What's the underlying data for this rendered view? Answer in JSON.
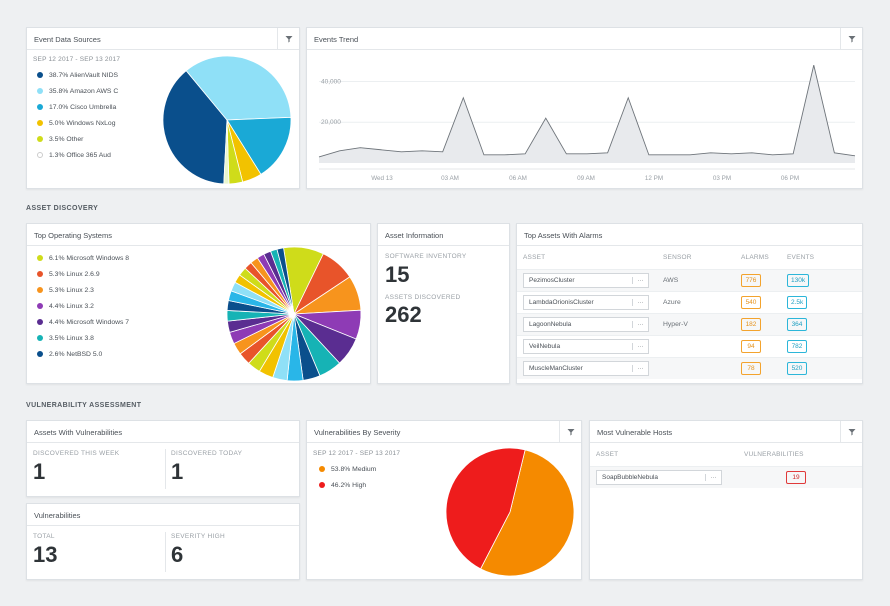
{
  "event_sources": {
    "title": "Event Data Sources",
    "date_range": "SEP 12 2017 - SEP 13 2017",
    "items": [
      {
        "label": "38.7% AlienVault NIDS",
        "color": "#0a4f8c"
      },
      {
        "label": "35.8% Amazon AWS C",
        "color": "#8fe0f7"
      },
      {
        "label": "17.0% Cisco Umbrella",
        "color": "#1aa9d6"
      },
      {
        "label": "5.0% Windows NxLog",
        "color": "#f2c200"
      },
      {
        "label": "3.5% Other",
        "color": "#cfdc1a"
      },
      {
        "label": "1.3% Office 365 Aud",
        "color": "#ffffff"
      }
    ],
    "chart_data": {
      "type": "pie",
      "labels": [
        "AlienVault NIDS",
        "Amazon AWS C",
        "Cisco Umbrella",
        "Windows NxLog",
        "Other",
        "Office 365 Aud"
      ],
      "values": [
        38.7,
        35.8,
        17.0,
        5.0,
        3.5,
        1.3
      ],
      "colors": [
        "#0a4f8c",
        "#8fe0f7",
        "#1aa9d6",
        "#f2c200",
        "#cfdc1a",
        "#e8f6cf"
      ]
    }
  },
  "events_trend": {
    "title": "Events Trend",
    "chart_data": {
      "type": "area",
      "x_labels": [
        "Wed 13",
        "03 AM",
        "06 AM",
        "09 AM",
        "12 PM",
        "03 PM",
        "06 PM"
      ],
      "y_ticks": [
        20000,
        40000
      ],
      "y_tick_labels": [
        "20,000",
        "40,000"
      ],
      "ylim": [
        0,
        52000
      ],
      "values": [
        3000,
        6000,
        7500,
        6500,
        5500,
        6000,
        5500,
        32000,
        4000,
        4000,
        4500,
        22000,
        4500,
        4500,
        5000,
        32000,
        4000,
        4000,
        4000,
        5000,
        4500,
        5000,
        4000,
        4500,
        48000,
        5000,
        3500
      ]
    }
  },
  "asset_discovery": {
    "section_title": "ASSET DISCOVERY",
    "os": {
      "title": "Top Operating Systems",
      "items": [
        {
          "label": "6.1% Microsoft Windows 8",
          "color": "#cfdc1a"
        },
        {
          "label": "5.3% Linux 2.6.9",
          "color": "#e8542a"
        },
        {
          "label": "5.3% Linux 2.3",
          "color": "#f7941d"
        },
        {
          "label": "4.4% Linux 3.2",
          "color": "#8e3bb5"
        },
        {
          "label": "4.4% Microsoft Windows 7",
          "color": "#5a2d91"
        },
        {
          "label": "3.5% Linux 3.8",
          "color": "#16b3b5"
        },
        {
          "label": "2.6% NetBSD 5.0",
          "color": "#0a4f8c"
        }
      ],
      "chart_data": {
        "type": "pie",
        "labels": [
          "Microsoft Windows 8",
          "Linux 2.6.9",
          "Linux 2.3",
          "Linux 3.2",
          "Microsoft Windows 7",
          "Linux 3.8",
          "NetBSD 5.0"
        ],
        "values": [
          6.1,
          5.3,
          5.3,
          4.4,
          4.4,
          3.5,
          2.6
        ]
      }
    },
    "info": {
      "title": "Asset Information",
      "software_label": "SOFTWARE INVENTORY",
      "software_value": "15",
      "discovered_label": "ASSETS DISCOVERED",
      "discovered_value": "262"
    },
    "top_assets": {
      "title": "Top Assets With Alarms",
      "headers": {
        "asset": "ASSET",
        "sensor": "SENSOR",
        "alarms": "ALARMS",
        "events": "EVENTS"
      },
      "rows": [
        {
          "asset": "PezimosCluster",
          "sensor": "AWS",
          "alarms": "776",
          "events": "130k"
        },
        {
          "asset": "LambdaOrionisCluster",
          "sensor": "Azure",
          "alarms": "540",
          "events": "2.5k"
        },
        {
          "asset": "LagoonNebula",
          "sensor": "Hyper-V",
          "alarms": "182",
          "events": "364"
        },
        {
          "asset": "VeilNebula",
          "sensor": "",
          "alarms": "94",
          "events": "782"
        },
        {
          "asset": "MuscleManCluster",
          "sensor": "",
          "alarms": "78",
          "events": "520"
        }
      ]
    }
  },
  "vulnerability": {
    "section_title": "VULNERABILITY ASSESSMENT",
    "assets_with": {
      "title": "Assets With Vulnerabilities",
      "week_label": "DISCOVERED THIS WEEK",
      "week_value": "1",
      "today_label": "DISCOVERED TODAY",
      "today_value": "1"
    },
    "vulns": {
      "title": "Vulnerabilities",
      "total_label": "TOTAL",
      "total_value": "13",
      "high_label": "SEVERITY HIGH",
      "high_value": "6"
    },
    "by_severity": {
      "title": "Vulnerabilities By Severity",
      "date_range": "SEP 12 2017 - SEP 13 2017",
      "items": [
        {
          "label": "53.8% Medium",
          "color": "#f58a00"
        },
        {
          "label": "46.2% High",
          "color": "#ee1c1c"
        }
      ],
      "chart_data": {
        "type": "pie",
        "labels": [
          "Medium",
          "High"
        ],
        "values": [
          53.8,
          46.2
        ],
        "colors": [
          "#f58a00",
          "#ee1c1c"
        ]
      }
    },
    "hosts": {
      "title": "Most Vulnerable Hosts",
      "headers": {
        "asset": "ASSET",
        "vulns": "VULNERABILITIES"
      },
      "rows": [
        {
          "asset": "SoapBubbleNebula",
          "vulns": "19"
        }
      ]
    }
  }
}
